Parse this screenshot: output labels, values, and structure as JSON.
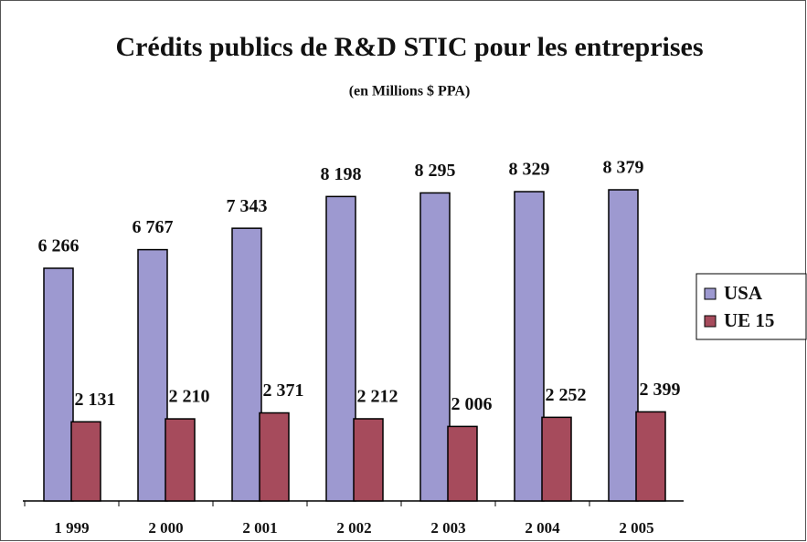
{
  "chart_data": {
    "type": "bar",
    "title": "Crédits publics de R&D STIC pour les entreprises",
    "subtitle": "(en Millions $ PPA)",
    "categories": [
      "1 999",
      "2 000",
      "2 001",
      "2 002",
      "2 003",
      "2 004",
      "2 005"
    ],
    "series": [
      {
        "name": "USA",
        "color": "#9d99d0",
        "values": [
          6266,
          6767,
          7343,
          8198,
          8295,
          8329,
          8379
        ],
        "value_labels": [
          "6 266",
          "6 767",
          "7 343",
          "8 198",
          "8 295",
          "8 329",
          "8 379"
        ]
      },
      {
        "name": "UE 15",
        "color": "#a64b5c",
        "values": [
          2131,
          2210,
          2371,
          2212,
          2006,
          2252,
          2399
        ],
        "value_labels": [
          "2 131",
          "2 210",
          "2 371",
          "2 212",
          "2 006",
          "2 252",
          "2 399"
        ]
      }
    ],
    "legend": "right"
  }
}
